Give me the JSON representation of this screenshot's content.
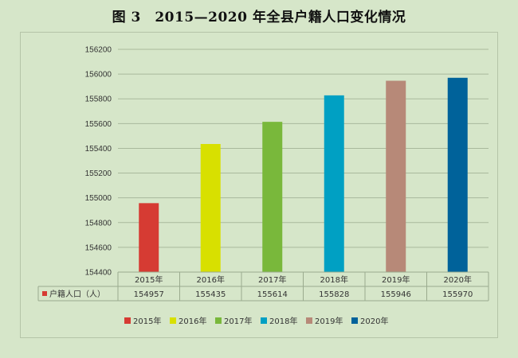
{
  "title": "图 3　2015—2020 年全县户籍人口变化情况",
  "chart_data": {
    "type": "bar",
    "categories": [
      "2015年",
      "2016年",
      "2017年",
      "2018年",
      "2019年",
      "2020年"
    ],
    "series": [
      {
        "name": "户籍人口（人）",
        "values": [
          154957,
          155435,
          155614,
          155828,
          155946,
          155970
        ],
        "colors": [
          "#d63b33",
          "#d8e000",
          "#79b83b",
          "#00a0c3",
          "#b78978",
          "#00629a"
        ]
      }
    ],
    "ylim": [
      154400,
      156200
    ],
    "yticks": [
      154400,
      154600,
      154800,
      155000,
      155200,
      155400,
      155600,
      155800,
      156000,
      156200
    ],
    "ytick_labels": [
      "154400",
      "154600",
      "154800",
      "155000",
      "155200",
      "155400",
      "155600",
      "155800",
      "156000",
      "156200"
    ],
    "data_table_row_label": "户籍人口（人）",
    "data_table_values": [
      "154957",
      "155435",
      "155614",
      "155828",
      "155946",
      "155970"
    ],
    "legend": [
      "2015年",
      "2016年",
      "2017年",
      "2018年",
      "2019年",
      "2020年"
    ],
    "legend_position": "bottom",
    "grid": true
  }
}
